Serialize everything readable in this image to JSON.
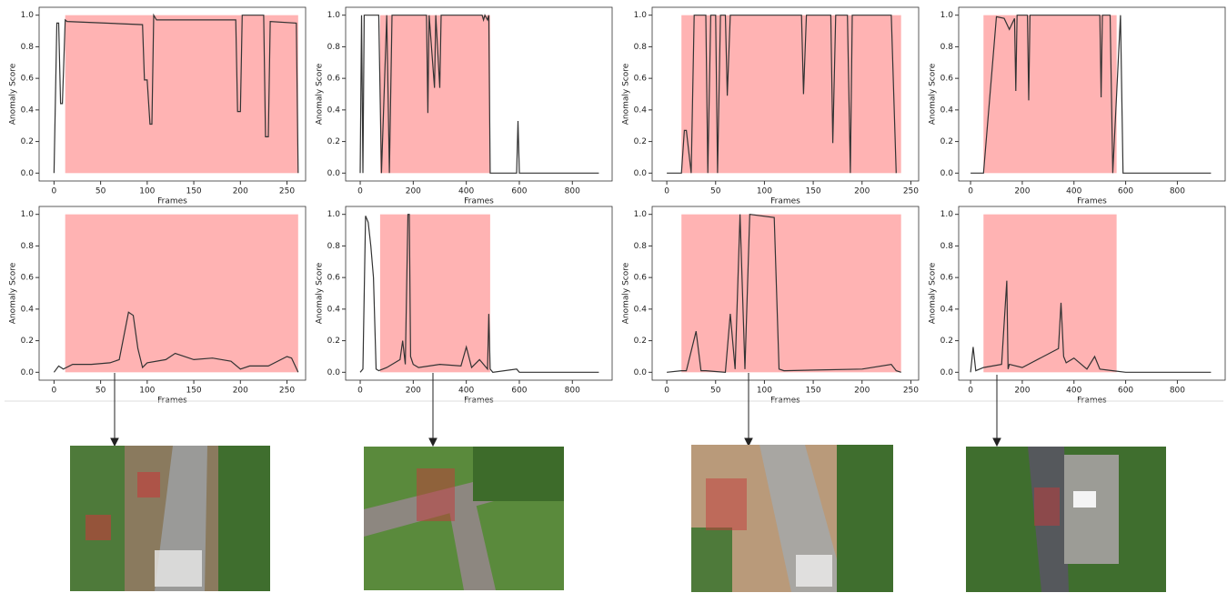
{
  "chart_data": [
    {
      "type": "line",
      "xlabel": "Frames",
      "ylabel": "Anomaly Score",
      "xlim": [
        -16,
        270
      ],
      "ylim": [
        -0.05,
        1.05
      ],
      "xticks": [
        0,
        50,
        100,
        150,
        200,
        250
      ],
      "yticks": [
        {
          "value": 0,
          "label": "0.0"
        },
        0.2,
        0.4,
        0.6,
        0.8,
        {
          "value": 1,
          "label": "1.0"
        }
      ],
      "highlight": [
        12,
        262
      ],
      "highlight_color": "#ffb3b3",
      "color": "#333333",
      "x": [
        0,
        3,
        5,
        7,
        9,
        12,
        14,
        95,
        97,
        100,
        103,
        105,
        107,
        110,
        195,
        197,
        200,
        202,
        225,
        227,
        230,
        232,
        260,
        262
      ],
      "values": [
        0,
        0.95,
        0.95,
        0.44,
        0.44,
        0.97,
        0.96,
        0.94,
        0.59,
        0.59,
        0.31,
        0.31,
        1.0,
        0.97,
        0.97,
        0.39,
        0.39,
        1.0,
        1.0,
        0.23,
        0.23,
        0.96,
        0.95,
        0
      ]
    },
    {
      "type": "line",
      "xlabel": "Frames",
      "ylabel": "Anomaly Score",
      "xlim": [
        -55,
        950
      ],
      "ylim": [
        -0.05,
        1.05
      ],
      "xticks": [
        0,
        200,
        400,
        600,
        800
      ],
      "yticks": [
        {
          "value": 0,
          "label": "0.0"
        },
        0.2,
        0.4,
        0.6,
        0.8,
        {
          "value": 1,
          "label": "1.0"
        }
      ],
      "highlight": [
        75,
        490
      ],
      "highlight_color": "#ffb3b3",
      "color": "#333333",
      "x": [
        0,
        5,
        10,
        15,
        20,
        70,
        80,
        100,
        110,
        120,
        250,
        255,
        260,
        280,
        285,
        300,
        305,
        460,
        465,
        470,
        480,
        485,
        490,
        500,
        590,
        595,
        600,
        900
      ],
      "values": [
        0,
        1,
        0,
        1,
        1,
        1,
        0,
        1,
        0,
        1,
        1,
        0.38,
        1,
        0.54,
        1,
        0.54,
        1,
        1,
        0.97,
        1,
        0.97,
        1,
        0,
        0,
        0,
        0.33,
        0,
        0
      ]
    },
    {
      "type": "line",
      "xlabel": "Frames",
      "ylabel": "Anomaly Score",
      "xlim": [
        -15,
        258
      ],
      "ylim": [
        -0.05,
        1.05
      ],
      "xticks": [
        0,
        50,
        100,
        150,
        200,
        250
      ],
      "yticks": [
        {
          "value": 0,
          "label": "0.0"
        },
        0.2,
        0.4,
        0.6,
        0.8,
        {
          "value": 1,
          "label": "1.0"
        }
      ],
      "highlight": [
        15,
        240
      ],
      "highlight_color": "#ffb3b3",
      "color": "#333333",
      "x": [
        0,
        15,
        18,
        20,
        25,
        28,
        40,
        42,
        45,
        50,
        52,
        55,
        60,
        62,
        65,
        138,
        140,
        143,
        168,
        170,
        173,
        185,
        188,
        190,
        230,
        235
      ],
      "values": [
        0,
        0,
        0.27,
        0.27,
        0,
        1,
        1,
        0,
        1,
        1,
        0,
        1,
        1,
        0.49,
        1,
        1,
        0.5,
        1,
        1,
        0.19,
        1,
        1,
        0,
        1,
        1,
        0
      ]
    },
    {
      "type": "line",
      "xlabel": "Frames",
      "ylabel": "Anomaly Score",
      "xlim": [
        -46,
        985
      ],
      "ylim": [
        -0.05,
        1.05
      ],
      "xticks": [
        0,
        200,
        400,
        600,
        800
      ],
      "yticks": [
        {
          "value": 0,
          "label": "0.0"
        },
        0.2,
        0.4,
        0.6,
        0.8,
        {
          "value": 1,
          "label": "1.0"
        }
      ],
      "highlight": [
        50,
        565
      ],
      "highlight_color": "#ffb3b3",
      "color": "#333333",
      "x": [
        0,
        50,
        100,
        130,
        150,
        170,
        175,
        180,
        190,
        220,
        225,
        230,
        500,
        505,
        510,
        540,
        550,
        580,
        590,
        600,
        930
      ],
      "values": [
        0,
        0,
        0.99,
        0.98,
        0.91,
        0.98,
        0.52,
        1,
        1,
        1,
        0.46,
        1,
        1,
        0.48,
        1,
        1,
        0,
        1,
        0,
        0,
        0
      ]
    },
    {
      "type": "line",
      "xlabel": "Frames",
      "ylabel": "Anomaly Score",
      "xlim": [
        -16,
        270
      ],
      "ylim": [
        -0.05,
        1.05
      ],
      "xticks": [
        0,
        50,
        100,
        150,
        200,
        250
      ],
      "yticks": [
        {
          "value": 0,
          "label": "0.0"
        },
        0.2,
        0.4,
        0.6,
        0.8,
        {
          "value": 1,
          "label": "1.0"
        }
      ],
      "highlight": [
        12,
        262
      ],
      "highlight_color": "#ffb3b3",
      "color": "#333333",
      "x": [
        0,
        5,
        10,
        20,
        40,
        60,
        70,
        80,
        85,
        90,
        95,
        100,
        120,
        130,
        150,
        170,
        190,
        200,
        210,
        230,
        250,
        255,
        262
      ],
      "values": [
        0,
        0.04,
        0.02,
        0.05,
        0.05,
        0.06,
        0.08,
        0.38,
        0.36,
        0.15,
        0.03,
        0.06,
        0.08,
        0.12,
        0.08,
        0.09,
        0.07,
        0.02,
        0.04,
        0.04,
        0.1,
        0.09,
        0
      ]
    },
    {
      "type": "line",
      "xlabel": "Frames",
      "ylabel": "Anomaly Score",
      "xlim": [
        -55,
        950
      ],
      "ylim": [
        -0.05,
        1.05
      ],
      "xticks": [
        0,
        200,
        400,
        600,
        800
      ],
      "yticks": [
        {
          "value": 0,
          "label": "0.0"
        },
        0.2,
        0.4,
        0.6,
        0.8,
        {
          "value": 1,
          "label": "1.0"
        }
      ],
      "highlight": [
        75,
        490
      ],
      "highlight_color": "#ffb3b3",
      "color": "#333333",
      "x": [
        0,
        10,
        20,
        30,
        40,
        50,
        60,
        70,
        100,
        150,
        160,
        170,
        180,
        185,
        190,
        200,
        220,
        300,
        380,
        400,
        420,
        450,
        480,
        485,
        490,
        500,
        590,
        600,
        900
      ],
      "values": [
        0,
        0.02,
        0.99,
        0.95,
        0.8,
        0.6,
        0.02,
        0.01,
        0.03,
        0.08,
        0.2,
        0.05,
        1,
        1,
        0.1,
        0.05,
        0.03,
        0.05,
        0.04,
        0.16,
        0.03,
        0.08,
        0.02,
        0.37,
        0.02,
        0,
        0.02,
        0,
        0
      ]
    },
    {
      "type": "line",
      "xlabel": "Frames",
      "ylabel": "Anomaly Score",
      "xlim": [
        -15,
        258
      ],
      "ylim": [
        -0.05,
        1.05
      ],
      "xticks": [
        0,
        50,
        100,
        150,
        200,
        250
      ],
      "yticks": [
        {
          "value": 0,
          "label": "0.0"
        },
        0.2,
        0.4,
        0.6,
        0.8,
        {
          "value": 1,
          "label": "1.0"
        }
      ],
      "highlight": [
        15,
        240
      ],
      "highlight_color": "#ffb3b3",
      "color": "#333333",
      "x": [
        0,
        15,
        20,
        30,
        35,
        40,
        60,
        65,
        70,
        75,
        80,
        85,
        110,
        115,
        120,
        200,
        230,
        235,
        240
      ],
      "values": [
        0,
        0.01,
        0.01,
        0.26,
        0.01,
        0.01,
        0,
        0.37,
        0.02,
        1,
        0.02,
        1,
        0.98,
        0.02,
        0.01,
        0.02,
        0.05,
        0.01,
        0
      ]
    },
    {
      "type": "line",
      "xlabel": "Frames",
      "ylabel": "Anomaly Score",
      "xlim": [
        -46,
        985
      ],
      "ylim": [
        -0.05,
        1.05
      ],
      "xticks": [
        0,
        200,
        400,
        600,
        800
      ],
      "yticks": [
        {
          "value": 0,
          "label": "0.0"
        },
        0.2,
        0.4,
        0.6,
        0.8,
        {
          "value": 1,
          "label": "1.0"
        }
      ],
      "highlight": [
        50,
        565
      ],
      "highlight_color": "#ffb3b3",
      "color": "#333333",
      "x": [
        0,
        10,
        20,
        50,
        120,
        140,
        145,
        150,
        200,
        340,
        350,
        360,
        370,
        400,
        450,
        480,
        500,
        550,
        600,
        930
      ],
      "values": [
        0,
        0.16,
        0.01,
        0.03,
        0.05,
        0.58,
        0.02,
        0.05,
        0.03,
        0.15,
        0.44,
        0.1,
        0.06,
        0.09,
        0.02,
        0.1,
        0.02,
        0.01,
        0,
        0
      ]
    }
  ]
}
